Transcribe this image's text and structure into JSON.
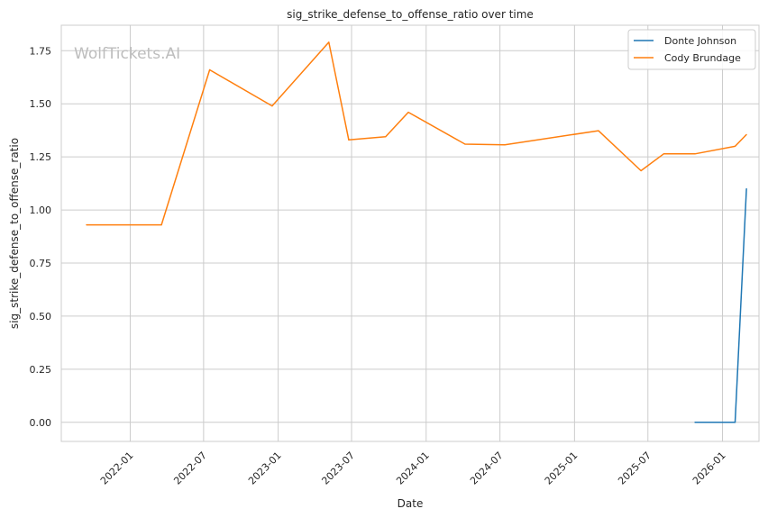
{
  "watermark": "WolfTickets.AI",
  "chart_data": {
    "type": "line",
    "title": "sig_strike_defense_to_offense_ratio over time",
    "xlabel": "Date",
    "ylabel": "sig_strike_defense_to_offense_ratio",
    "x_ticks": [
      "2022-01",
      "2022-07",
      "2023-01",
      "2023-07",
      "2024-01",
      "2024-07",
      "2025-01",
      "2025-07",
      "2026-01"
    ],
    "y_ticks": [
      "0.00",
      "0.25",
      "0.50",
      "0.75",
      "1.00",
      "1.25",
      "1.50",
      "1.75"
    ],
    "xlim": [
      "2021-07-15",
      "2026-04-01"
    ],
    "ylim": [
      -0.09,
      1.87
    ],
    "grid": true,
    "legend_position": "top-right",
    "series": [
      {
        "name": "Donte Johnson",
        "color": "#1f77b4",
        "points": [
          {
            "x": "2025-10-25",
            "y": 0.0
          },
          {
            "x": "2026-02-01",
            "y": 0.0
          },
          {
            "x": "2026-03-01",
            "y": 1.1
          }
        ]
      },
      {
        "name": "Cody Brundage",
        "color": "#ff7f0e",
        "points": [
          {
            "x": "2021-09-15",
            "y": 0.93
          },
          {
            "x": "2022-03-19",
            "y": 0.93
          },
          {
            "x": "2022-07-16",
            "y": 1.66
          },
          {
            "x": "2022-12-17",
            "y": 1.49
          },
          {
            "x": "2023-05-06",
            "y": 1.79
          },
          {
            "x": "2023-06-24",
            "y": 1.33
          },
          {
            "x": "2023-09-23",
            "y": 1.345
          },
          {
            "x": "2023-11-18",
            "y": 1.46
          },
          {
            "x": "2024-04-06",
            "y": 1.31
          },
          {
            "x": "2024-07-13",
            "y": 1.307
          },
          {
            "x": "2025-03-01",
            "y": 1.373
          },
          {
            "x": "2025-06-14",
            "y": 1.185
          },
          {
            "x": "2025-08-09",
            "y": 1.264
          },
          {
            "x": "2025-10-25",
            "y": 1.264
          },
          {
            "x": "2026-02-01",
            "y": 1.3
          },
          {
            "x": "2026-03-01",
            "y": 1.355
          }
        ]
      }
    ]
  }
}
